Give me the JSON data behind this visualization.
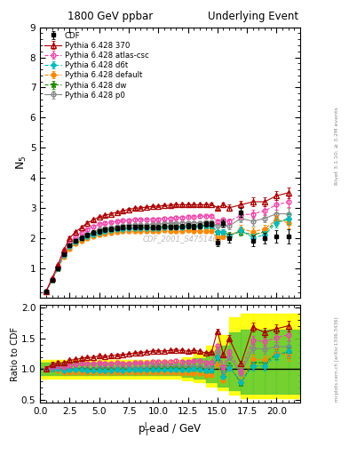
{
  "title_left": "1800 GeV ppbar",
  "title_right": "Underlying Event",
  "right_label_top": "Rivet 3.1.10; ≥ 3.2M events",
  "right_label_bot": "mcplots.cern.ch [arXiv:1306.3436]",
  "watermark": "CDF_2001_S4751469",
  "ylim_main": [
    0,
    9
  ],
  "ylim_ratio": [
    0.45,
    2.05
  ],
  "xlim": [
    0,
    22
  ],
  "yticks_main": [
    1,
    2,
    3,
    4,
    5,
    6,
    7,
    8,
    9
  ],
  "yticks_ratio": [
    0.5,
    1.0,
    1.5,
    2.0
  ],
  "cdf_x": [
    0.5,
    1.0,
    1.5,
    2.0,
    2.5,
    3.0,
    3.5,
    4.0,
    4.5,
    5.0,
    5.5,
    6.0,
    6.5,
    7.0,
    7.5,
    8.0,
    8.5,
    9.0,
    9.5,
    10.0,
    10.5,
    11.0,
    11.5,
    12.0,
    12.5,
    13.0,
    13.5,
    14.0,
    14.5,
    15.0,
    15.5,
    16.0,
    17.0,
    18.0,
    19.0,
    20.0,
    21.0
  ],
  "cdf_y": [
    0.22,
    0.6,
    1.0,
    1.45,
    1.75,
    1.9,
    2.0,
    2.1,
    2.18,
    2.22,
    2.28,
    2.3,
    2.32,
    2.35,
    2.36,
    2.36,
    2.36,
    2.36,
    2.35,
    2.35,
    2.38,
    2.36,
    2.36,
    2.38,
    2.4,
    2.38,
    2.4,
    2.45,
    2.45,
    1.85,
    2.5,
    2.0,
    2.85,
    1.9,
    2.0,
    2.05,
    2.05
  ],
  "cdf_yerr": [
    0.02,
    0.04,
    0.05,
    0.06,
    0.07,
    0.07,
    0.07,
    0.07,
    0.07,
    0.07,
    0.07,
    0.07,
    0.07,
    0.07,
    0.07,
    0.07,
    0.07,
    0.07,
    0.07,
    0.07,
    0.07,
    0.07,
    0.07,
    0.07,
    0.08,
    0.08,
    0.08,
    0.09,
    0.09,
    0.12,
    0.12,
    0.15,
    0.15,
    0.18,
    0.18,
    0.2,
    0.25
  ],
  "py370_x": [
    0.5,
    1.0,
    1.5,
    2.0,
    2.5,
    3.0,
    3.5,
    4.0,
    4.5,
    5.0,
    5.5,
    6.0,
    6.5,
    7.0,
    7.5,
    8.0,
    8.5,
    9.0,
    9.5,
    10.0,
    10.5,
    11.0,
    11.5,
    12.0,
    12.5,
    13.0,
    13.5,
    14.0,
    14.5,
    15.0,
    15.5,
    16.0,
    17.0,
    18.0,
    19.0,
    20.0,
    21.0
  ],
  "py370_y": [
    0.22,
    0.65,
    1.1,
    1.6,
    2.0,
    2.2,
    2.35,
    2.5,
    2.6,
    2.7,
    2.75,
    2.8,
    2.85,
    2.9,
    2.95,
    2.98,
    3.0,
    3.02,
    3.05,
    3.05,
    3.08,
    3.08,
    3.1,
    3.1,
    3.1,
    3.1,
    3.1,
    3.1,
    3.12,
    3.0,
    3.1,
    3.0,
    3.1,
    3.2,
    3.2,
    3.4,
    3.5
  ],
  "py370_yerr": [
    0.01,
    0.02,
    0.03,
    0.03,
    0.04,
    0.04,
    0.04,
    0.04,
    0.04,
    0.04,
    0.04,
    0.04,
    0.04,
    0.04,
    0.04,
    0.04,
    0.04,
    0.04,
    0.04,
    0.04,
    0.04,
    0.05,
    0.05,
    0.05,
    0.05,
    0.05,
    0.05,
    0.05,
    0.05,
    0.06,
    0.08,
    0.1,
    0.12,
    0.14,
    0.14,
    0.15,
    0.18
  ],
  "pyatlas_x": [
    0.5,
    1.0,
    1.5,
    2.0,
    2.5,
    3.0,
    3.5,
    4.0,
    4.5,
    5.0,
    5.5,
    6.0,
    6.5,
    7.0,
    7.5,
    8.0,
    8.5,
    9.0,
    9.5,
    10.0,
    10.5,
    11.0,
    11.5,
    12.0,
    12.5,
    13.0,
    13.5,
    14.0,
    14.5,
    15.0,
    15.5,
    16.0,
    17.0,
    18.0,
    19.0,
    20.0,
    21.0
  ],
  "pyatlas_y": [
    0.22,
    0.62,
    1.05,
    1.5,
    1.85,
    2.05,
    2.18,
    2.28,
    2.38,
    2.45,
    2.5,
    2.52,
    2.55,
    2.58,
    2.58,
    2.6,
    2.6,
    2.6,
    2.62,
    2.62,
    2.65,
    2.65,
    2.68,
    2.68,
    2.7,
    2.7,
    2.72,
    2.72,
    2.72,
    2.55,
    2.6,
    2.55,
    2.75,
    2.8,
    2.9,
    3.1,
    3.2
  ],
  "pyatlas_yerr": [
    0.01,
    0.02,
    0.03,
    0.03,
    0.04,
    0.04,
    0.04,
    0.04,
    0.04,
    0.04,
    0.04,
    0.04,
    0.04,
    0.04,
    0.04,
    0.04,
    0.04,
    0.04,
    0.04,
    0.04,
    0.04,
    0.05,
    0.05,
    0.05,
    0.05,
    0.05,
    0.05,
    0.05,
    0.05,
    0.06,
    0.08,
    0.1,
    0.12,
    0.14,
    0.14,
    0.15,
    0.18
  ],
  "pyd6t_x": [
    0.5,
    1.0,
    1.5,
    2.0,
    2.5,
    3.0,
    3.5,
    4.0,
    4.5,
    5.0,
    5.5,
    6.0,
    6.5,
    7.0,
    7.5,
    8.0,
    8.5,
    9.0,
    9.5,
    10.0,
    10.5,
    11.0,
    11.5,
    12.0,
    12.5,
    13.0,
    13.5,
    14.0,
    14.5,
    15.0,
    15.5,
    16.0,
    17.0,
    18.0,
    19.0,
    20.0,
    21.0
  ],
  "pyd6t_y": [
    0.22,
    0.6,
    1.0,
    1.42,
    1.72,
    1.88,
    1.98,
    2.05,
    2.12,
    2.18,
    2.22,
    2.25,
    2.28,
    2.3,
    2.32,
    2.32,
    2.32,
    2.32,
    2.32,
    2.32,
    2.35,
    2.35,
    2.35,
    2.35,
    2.38,
    2.38,
    2.38,
    2.4,
    2.4,
    2.2,
    2.2,
    2.05,
    2.25,
    2.0,
    2.1,
    2.5,
    2.65
  ],
  "pyd6t_yerr": [
    0.01,
    0.02,
    0.03,
    0.03,
    0.04,
    0.04,
    0.04,
    0.04,
    0.04,
    0.04,
    0.04,
    0.04,
    0.04,
    0.04,
    0.04,
    0.04,
    0.04,
    0.04,
    0.04,
    0.04,
    0.04,
    0.05,
    0.05,
    0.05,
    0.05,
    0.05,
    0.05,
    0.05,
    0.05,
    0.06,
    0.08,
    0.1,
    0.12,
    0.14,
    0.14,
    0.15,
    0.18
  ],
  "pydefault_x": [
    0.5,
    1.0,
    1.5,
    2.0,
    2.5,
    3.0,
    3.5,
    4.0,
    4.5,
    5.0,
    5.5,
    6.0,
    6.5,
    7.0,
    7.5,
    8.0,
    8.5,
    9.0,
    9.5,
    10.0,
    10.5,
    11.0,
    11.5,
    12.0,
    12.5,
    13.0,
    13.5,
    14.0,
    14.5,
    15.0,
    15.5,
    16.0,
    17.0,
    18.0,
    19.0,
    20.0,
    21.0
  ],
  "pydefault_y": [
    0.22,
    0.6,
    0.98,
    1.38,
    1.65,
    1.8,
    1.9,
    1.98,
    2.05,
    2.1,
    2.15,
    2.18,
    2.2,
    2.22,
    2.22,
    2.22,
    2.22,
    2.22,
    2.22,
    2.22,
    2.25,
    2.22,
    2.22,
    2.22,
    2.25,
    2.22,
    2.22,
    2.22,
    2.22,
    2.0,
    2.05,
    2.05,
    2.3,
    2.2,
    2.3,
    2.6,
    2.5
  ],
  "pydefault_yerr": [
    0.01,
    0.02,
    0.03,
    0.03,
    0.04,
    0.04,
    0.04,
    0.04,
    0.04,
    0.04,
    0.04,
    0.04,
    0.04,
    0.04,
    0.04,
    0.04,
    0.04,
    0.04,
    0.04,
    0.04,
    0.04,
    0.05,
    0.05,
    0.05,
    0.05,
    0.05,
    0.05,
    0.05,
    0.05,
    0.06,
    0.08,
    0.1,
    0.12,
    0.14,
    0.14,
    0.15,
    0.18
  ],
  "pydw_x": [
    0.5,
    1.0,
    1.5,
    2.0,
    2.5,
    3.0,
    3.5,
    4.0,
    4.5,
    5.0,
    5.5,
    6.0,
    6.5,
    7.0,
    7.5,
    8.0,
    8.5,
    9.0,
    9.5,
    10.0,
    10.5,
    11.0,
    11.5,
    12.0,
    12.5,
    13.0,
    13.5,
    14.0,
    14.5,
    15.0,
    15.5,
    16.0,
    17.0,
    18.0,
    19.0,
    20.0,
    21.0
  ],
  "pydw_y": [
    0.22,
    0.6,
    1.0,
    1.42,
    1.72,
    1.88,
    2.0,
    2.08,
    2.15,
    2.2,
    2.25,
    2.28,
    2.3,
    2.32,
    2.32,
    2.32,
    2.35,
    2.35,
    2.35,
    2.35,
    2.38,
    2.38,
    2.38,
    2.38,
    2.4,
    2.38,
    2.4,
    2.4,
    2.4,
    2.2,
    2.2,
    2.1,
    2.2,
    2.1,
    2.2,
    2.55,
    2.6
  ],
  "pydw_yerr": [
    0.01,
    0.02,
    0.03,
    0.03,
    0.04,
    0.04,
    0.04,
    0.04,
    0.04,
    0.04,
    0.04,
    0.04,
    0.04,
    0.04,
    0.04,
    0.04,
    0.04,
    0.04,
    0.04,
    0.04,
    0.04,
    0.05,
    0.05,
    0.05,
    0.05,
    0.05,
    0.05,
    0.05,
    0.05,
    0.06,
    0.08,
    0.1,
    0.12,
    0.14,
    0.14,
    0.15,
    0.18
  ],
  "pyp0_x": [
    0.5,
    1.0,
    1.5,
    2.0,
    2.5,
    3.0,
    3.5,
    4.0,
    4.5,
    5.0,
    5.5,
    6.0,
    6.5,
    7.0,
    7.5,
    8.0,
    8.5,
    9.0,
    9.5,
    10.0,
    10.5,
    11.0,
    11.5,
    12.0,
    12.5,
    13.0,
    13.5,
    14.0,
    14.5,
    15.0,
    15.5,
    16.0,
    17.0,
    18.0,
    19.0,
    20.0,
    21.0
  ],
  "pyp0_y": [
    0.22,
    0.6,
    1.0,
    1.45,
    1.75,
    1.92,
    2.02,
    2.12,
    2.2,
    2.28,
    2.32,
    2.35,
    2.38,
    2.4,
    2.42,
    2.42,
    2.42,
    2.42,
    2.45,
    2.45,
    2.48,
    2.48,
    2.48,
    2.5,
    2.5,
    2.5,
    2.5,
    2.52,
    2.52,
    2.4,
    2.42,
    2.4,
    2.65,
    2.55,
    2.65,
    2.8,
    2.8
  ],
  "pyp0_yerr": [
    0.01,
    0.02,
    0.03,
    0.03,
    0.04,
    0.04,
    0.04,
    0.04,
    0.04,
    0.04,
    0.04,
    0.04,
    0.04,
    0.04,
    0.04,
    0.04,
    0.04,
    0.04,
    0.04,
    0.04,
    0.04,
    0.05,
    0.05,
    0.05,
    0.05,
    0.05,
    0.05,
    0.05,
    0.05,
    0.06,
    0.08,
    0.1,
    0.12,
    0.14,
    0.14,
    0.15,
    0.18
  ],
  "band_edges": [
    0,
    2,
    4,
    6,
    8,
    10,
    12,
    13,
    14,
    15,
    16,
    17,
    18,
    19,
    20,
    21,
    22
  ],
  "band_yellow_lo": [
    0.85,
    0.85,
    0.85,
    0.85,
    0.85,
    0.85,
    0.82,
    0.78,
    0.72,
    0.65,
    0.58,
    0.52,
    0.52,
    0.52,
    0.52,
    0.52,
    0.52
  ],
  "band_yellow_hi": [
    1.15,
    1.15,
    1.15,
    1.15,
    1.15,
    1.15,
    1.2,
    1.28,
    1.38,
    1.55,
    1.85,
    1.9,
    1.9,
    1.9,
    1.9,
    1.9,
    1.9
  ],
  "band_green_lo": [
    0.9,
    0.9,
    0.9,
    0.9,
    0.9,
    0.9,
    0.87,
    0.84,
    0.78,
    0.72,
    0.65,
    0.6,
    0.6,
    0.6,
    0.6,
    0.6,
    0.6
  ],
  "band_green_hi": [
    1.1,
    1.1,
    1.1,
    1.1,
    1.1,
    1.1,
    1.13,
    1.18,
    1.28,
    1.38,
    1.6,
    1.65,
    1.65,
    1.65,
    1.65,
    1.65,
    1.65
  ]
}
